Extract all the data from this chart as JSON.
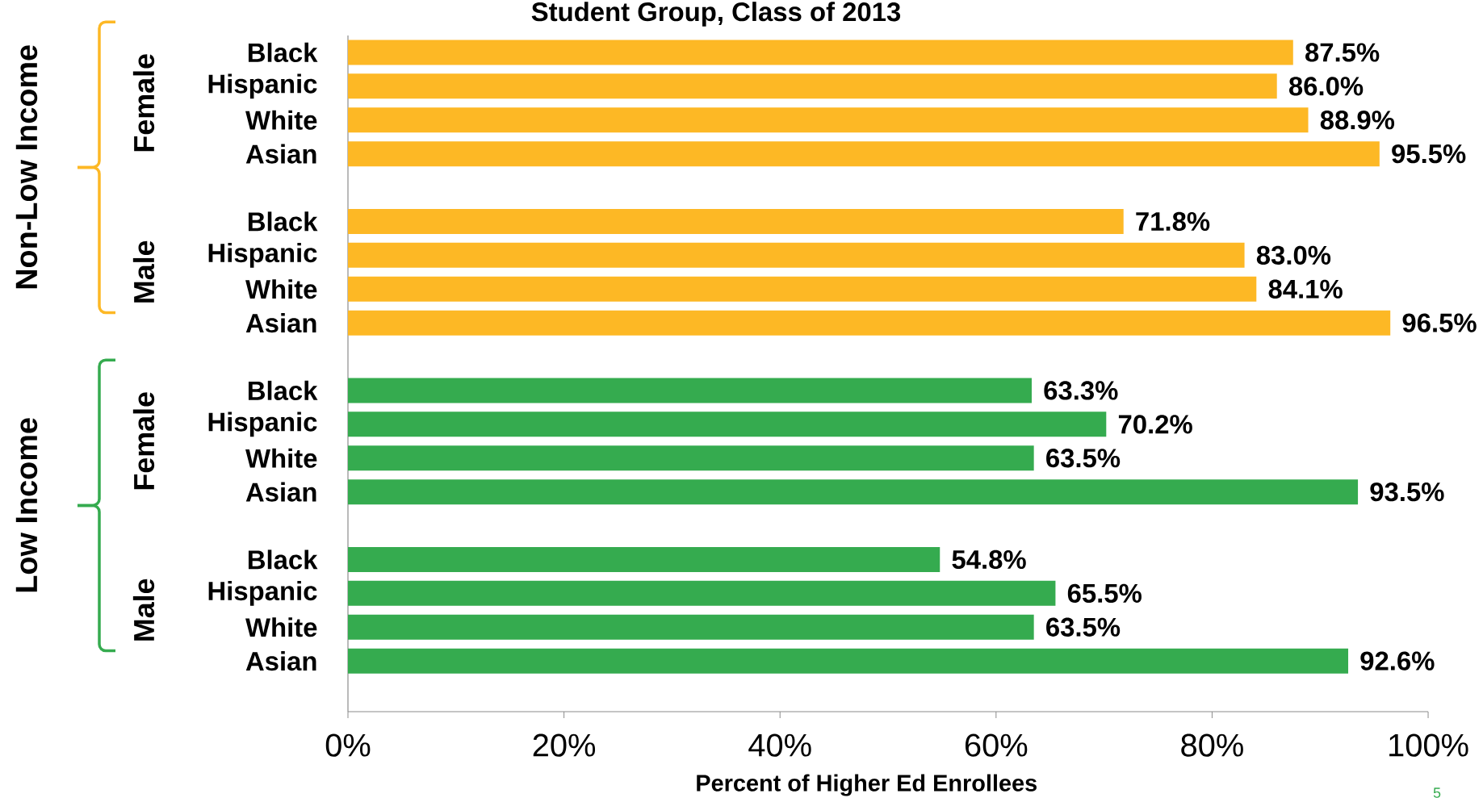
{
  "chart_data": {
    "type": "bar",
    "orientation": "horizontal",
    "title": "Student Group, Class of 2013",
    "xlabel": "Percent of Higher Ed Enrollees",
    "categories": [
      "Black",
      "Hispanic",
      "White",
      "Asian",
      null,
      "Black",
      "Hispanic",
      "White",
      "Asian",
      null,
      "Black",
      "Hispanic",
      "White",
      "Asian",
      null,
      "Black",
      "Hispanic",
      "White",
      "Asian",
      null
    ],
    "values": [
      87.5,
      86.0,
      88.9,
      95.5,
      null,
      71.8,
      83.0,
      84.1,
      96.5,
      null,
      63.3,
      70.2,
      63.5,
      93.5,
      null,
      54.8,
      65.5,
      63.5,
      92.6,
      null
    ],
    "value_labels": [
      "87.5%",
      "86.0%",
      "88.9%",
      "95.5%",
      null,
      "71.8%",
      "83.0%",
      "84.1%",
      "96.5%",
      null,
      "63.3%",
      "70.2%",
      "63.5%",
      "93.5%",
      null,
      "54.8%",
      "65.5%",
      "63.5%",
      "92.6%",
      null
    ],
    "colors": [
      "#fdb825",
      "#fdb825",
      "#fdb825",
      "#fdb825",
      null,
      "#fdb825",
      "#fdb825",
      "#fdb825",
      "#fdb825",
      null,
      "#35ab4f",
      "#35ab4f",
      "#35ab4f",
      "#35ab4f",
      null,
      "#35ab4f",
      "#35ab4f",
      "#35ab4f",
      "#35ab4f",
      null
    ],
    "xlim": [
      0,
      100
    ],
    "xticks": [
      {
        "value": 0,
        "label": "0%"
      },
      {
        "value": 20,
        "label": "20%"
      },
      {
        "value": 40,
        "label": "40%"
      },
      {
        "value": 60,
        "label": "60%"
      },
      {
        "value": 80,
        "label": "80%"
      },
      {
        "value": 100,
        "label": "100%"
      }
    ],
    "annotations": [
      "Non-Low Income",
      "Female",
      "Male",
      "Low Income",
      "Female",
      "Male",
      "5"
    ]
  }
}
